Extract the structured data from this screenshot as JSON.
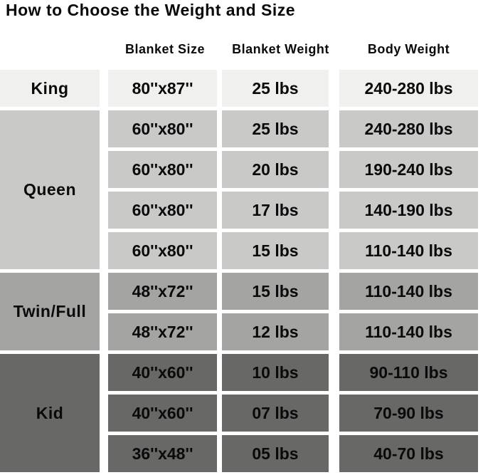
{
  "title": "How to Choose the Weight and Size",
  "columns": {
    "size": "Blanket Size",
    "weight": "Blanket Weight",
    "body": "Body Weight"
  },
  "groups": [
    {
      "label": "King",
      "color": "#f0f0ee",
      "rows": [
        {
          "size": "80''x87''",
          "weight": "25 lbs",
          "body": "240-280 lbs"
        }
      ]
    },
    {
      "label": "Queen",
      "color": "#c9c9c8",
      "rows": [
        {
          "size": "60''x80''",
          "weight": "25 lbs",
          "body": "240-280 lbs"
        },
        {
          "size": "60''x80''",
          "weight": "20 lbs",
          "body": "190-240 lbs"
        },
        {
          "size": "60''x80''",
          "weight": "17 lbs",
          "body": "140-190 lbs"
        },
        {
          "size": "60''x80''",
          "weight": "15 lbs",
          "body": "110-140 lbs"
        }
      ]
    },
    {
      "label": "Twin/Full",
      "color": "#a4a4a3",
      "rows": [
        {
          "size": "48''x72''",
          "weight": "15 lbs",
          "body": "110-140 lbs"
        },
        {
          "size": "48''x72''",
          "weight": "12 lbs",
          "body": "110-140 lbs"
        }
      ]
    },
    {
      "label": "Kid",
      "color": "#686867",
      "rows": [
        {
          "size": "40''x60''",
          "weight": "10 lbs",
          "body": "90-110 lbs"
        },
        {
          "size": "40''x60''",
          "weight": "07 lbs",
          "body": "70-90 lbs"
        },
        {
          "size": "36''x48''",
          "weight": "05 lbs",
          "body": "40-70 lbs"
        }
      ]
    }
  ],
  "chart_data": {
    "type": "table",
    "title": "How to Choose the Weight and Size",
    "columns": [
      "Group",
      "Blanket Size",
      "Blanket Weight",
      "Body Weight"
    ],
    "rows": [
      [
        "King",
        "80''x87''",
        "25 lbs",
        "240-280 lbs"
      ],
      [
        "Queen",
        "60''x80''",
        "25 lbs",
        "240-280 lbs"
      ],
      [
        "Queen",
        "60''x80''",
        "20 lbs",
        "190-240 lbs"
      ],
      [
        "Queen",
        "60''x80''",
        "17 lbs",
        "140-190 lbs"
      ],
      [
        "Queen",
        "60''x80''",
        "15 lbs",
        "110-140 lbs"
      ],
      [
        "Twin/Full",
        "48''x72''",
        "15 lbs",
        "110-140 lbs"
      ],
      [
        "Twin/Full",
        "48''x72''",
        "12 lbs",
        "110-140 lbs"
      ],
      [
        "Kid",
        "40''x60''",
        "10 lbs",
        "90-110 lbs"
      ],
      [
        "Kid",
        "40''x60''",
        "07 lbs",
        "70-90 lbs"
      ],
      [
        "Kid",
        "36''x48''",
        "05 lbs",
        "40-70 lbs"
      ]
    ]
  }
}
